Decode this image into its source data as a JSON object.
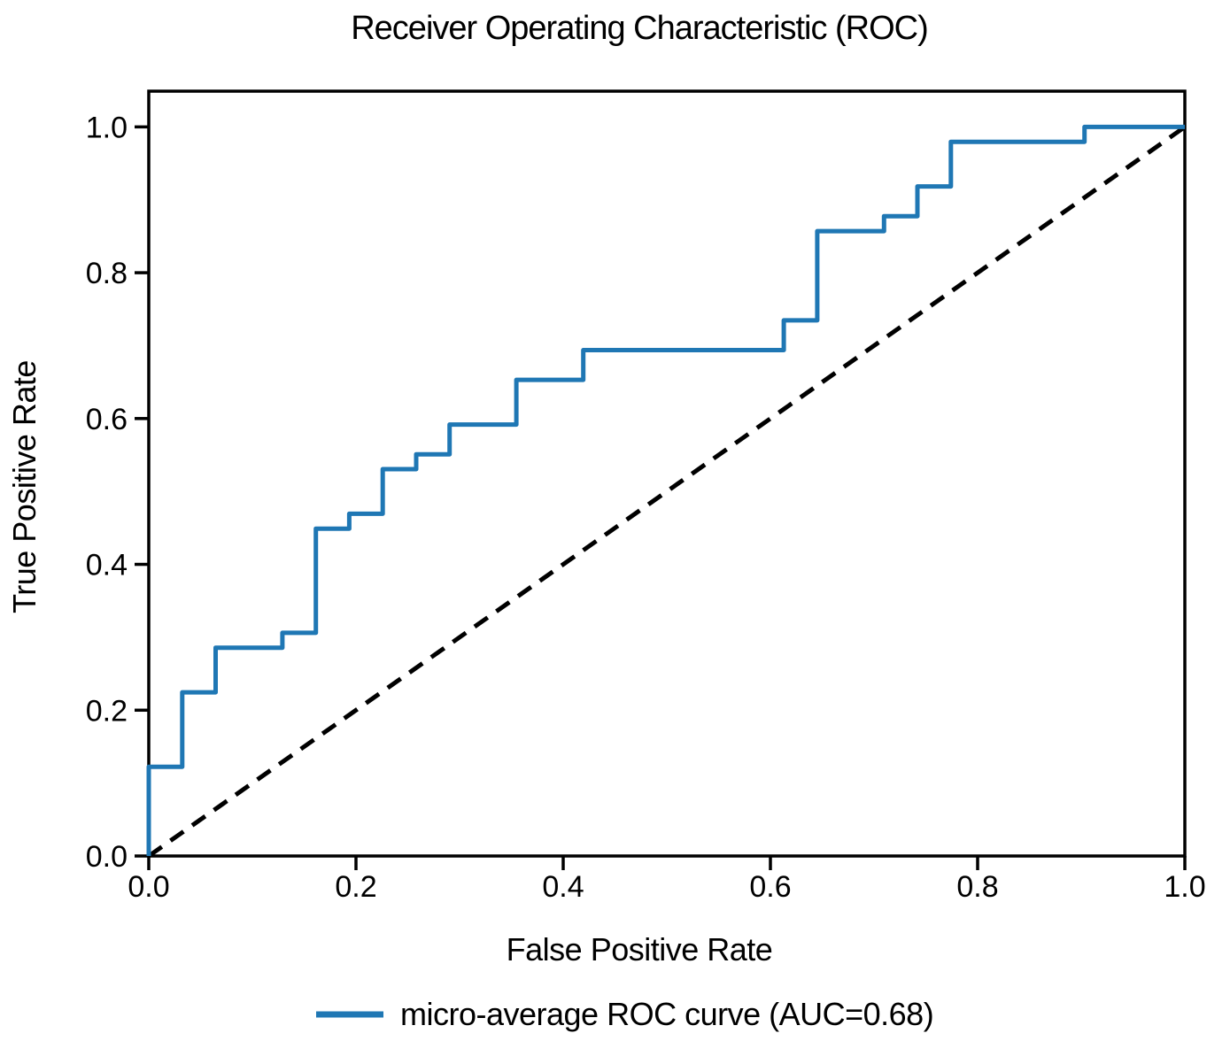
{
  "chart_data": {
    "type": "line",
    "subtype": "roc-step-curve",
    "title": "Receiver Operating Characteristic (ROC)",
    "xlabel": "False Positive Rate",
    "ylabel": "True Positive Rate",
    "xlim": [
      0.0,
      1.0
    ],
    "ylim": [
      0.0,
      1.049
    ],
    "x_tick_labels": [
      "0.0",
      "0.2",
      "0.4",
      "0.6",
      "0.8",
      "1.0"
    ],
    "y_tick_labels": [
      "0.0",
      "0.2",
      "0.4",
      "0.6",
      "0.8",
      "1.0"
    ],
    "grid": false,
    "frame_color": "#000000",
    "legend": {
      "position": "below-center",
      "entries": [
        {
          "label": "micro-average ROC curve (AUC=0.68)",
          "color": "#1f77b4",
          "line_style": "solid"
        }
      ]
    },
    "series": [
      {
        "name": "micro-average ROC curve (AUC=0.68)",
        "auc": 0.68,
        "color": "#1f77b4",
        "line_style": "solid",
        "line_width": 5,
        "draw": "steps",
        "show_in_legend": true,
        "points": [
          [
            0.0,
            0.0
          ],
          [
            0.0,
            0.1224
          ],
          [
            0.0323,
            0.1224
          ],
          [
            0.0323,
            0.2245
          ],
          [
            0.0645,
            0.2245
          ],
          [
            0.0645,
            0.2857
          ],
          [
            0.129,
            0.2857
          ],
          [
            0.129,
            0.3061
          ],
          [
            0.1613,
            0.3061
          ],
          [
            0.1613,
            0.449
          ],
          [
            0.1935,
            0.449
          ],
          [
            0.1935,
            0.4694
          ],
          [
            0.2258,
            0.4694
          ],
          [
            0.2258,
            0.5306
          ],
          [
            0.2581,
            0.5306
          ],
          [
            0.2581,
            0.551
          ],
          [
            0.2903,
            0.551
          ],
          [
            0.2903,
            0.5918
          ],
          [
            0.3548,
            0.5918
          ],
          [
            0.3548,
            0.6531
          ],
          [
            0.4194,
            0.6531
          ],
          [
            0.4194,
            0.6939
          ],
          [
            0.6129,
            0.6939
          ],
          [
            0.6129,
            0.7347
          ],
          [
            0.6452,
            0.7347
          ],
          [
            0.6452,
            0.8571
          ],
          [
            0.7097,
            0.8571
          ],
          [
            0.7097,
            0.8776
          ],
          [
            0.7419,
            0.8776
          ],
          [
            0.7419,
            0.9184
          ],
          [
            0.7742,
            0.9184
          ],
          [
            0.7742,
            0.9796
          ],
          [
            0.9032,
            0.9796
          ],
          [
            0.9032,
            1.0
          ],
          [
            1.0,
            1.0
          ]
        ]
      },
      {
        "name": "chance diagonal",
        "color": "#000000",
        "line_style": "dashed",
        "line_width": 5,
        "draw": "line",
        "show_in_legend": false,
        "points": [
          [
            0.0,
            0.0
          ],
          [
            1.0,
            1.0
          ]
        ]
      }
    ]
  }
}
